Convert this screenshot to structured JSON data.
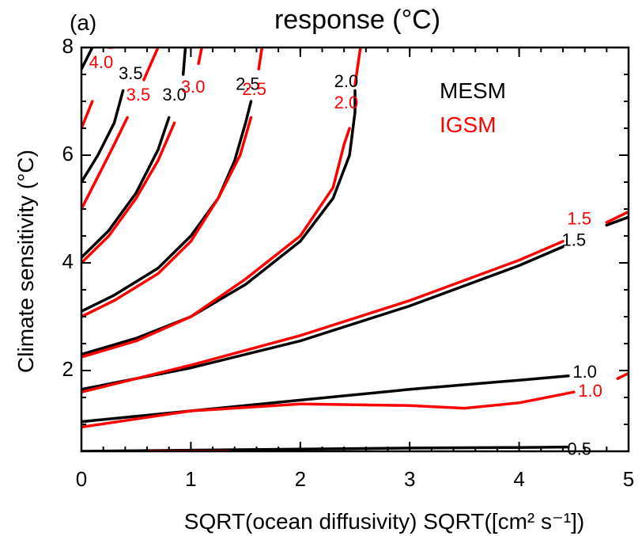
{
  "chart_data": {
    "type": "line",
    "panel_label": "(a)",
    "title": "response (°C)",
    "xlabel": "SQRT(ocean diffusivity) SQRT([cm² s⁻¹])",
    "ylabel": "Climate sensitivity (°C)",
    "xlim": [
      0,
      5
    ],
    "ylim": [
      0.5,
      8
    ],
    "x_ticks": [
      0,
      1,
      2,
      3,
      4,
      5
    ],
    "y_ticks": [
      2,
      4,
      6,
      8
    ],
    "grid": false,
    "legend_position": "top-right",
    "series": [
      {
        "name": "MESM",
        "color": "#000000",
        "contours": [
          {
            "level": "0.5",
            "label_at": [
              4.55,
              0.52
            ],
            "points": [
              [
                0,
                0.5
              ],
              [
                1,
                0.52
              ],
              [
                2,
                0.54
              ],
              [
                3,
                0.56
              ],
              [
                4,
                0.57
              ],
              [
                4.45,
                0.58
              ]
            ]
          },
          {
            "level": "1.0",
            "label_at": [
              4.6,
              1.95
            ],
            "points": [
              [
                0,
                1.05
              ],
              [
                1,
                1.25
              ],
              [
                2,
                1.45
              ],
              [
                3,
                1.65
              ],
              [
                4,
                1.82
              ],
              [
                4.45,
                1.9
              ]
            ]
          },
          {
            "level": "1.5",
            "label_at": [
              4.5,
              4.4
            ],
            "points": [
              [
                0,
                1.65
              ],
              [
                1,
                2.05
              ],
              [
                2,
                2.55
              ],
              [
                3,
                3.2
              ],
              [
                4,
                3.95
              ],
              [
                4.4,
                4.3
              ]
            ]
          },
          {
            "level": "1.5",
            "label_at": null,
            "points": [
              [
                4.8,
                4.7
              ],
              [
                5,
                4.85
              ]
            ]
          },
          {
            "level": "2.0",
            "label_at": [
              2.42,
              7.35
            ],
            "points": [
              [
                0,
                2.3
              ],
              [
                0.5,
                2.6
              ],
              [
                1,
                3.0
              ],
              [
                1.5,
                3.6
              ],
              [
                2,
                4.4
              ],
              [
                2.3,
                5.2
              ],
              [
                2.45,
                6.0
              ],
              [
                2.5,
                6.8
              ],
              [
                2.5,
                7.2
              ]
            ]
          },
          {
            "level": "2.5",
            "label_at": [
              1.52,
              7.3
            ],
            "points": [
              [
                0,
                3.1
              ],
              [
                0.3,
                3.4
              ],
              [
                0.7,
                3.9
              ],
              [
                1.0,
                4.5
              ],
              [
                1.25,
                5.2
              ],
              [
                1.4,
                5.9
              ],
              [
                1.5,
                6.6
              ],
              [
                1.55,
                7.0
              ]
            ]
          },
          {
            "level": "3.0",
            "label_at": [
              0.85,
              7.1
            ],
            "points": [
              [
                0,
                4.1
              ],
              [
                0.25,
                4.6
              ],
              [
                0.5,
                5.3
              ],
              [
                0.7,
                6.1
              ],
              [
                0.8,
                6.7
              ]
            ]
          },
          {
            "level": "3.0",
            "label_at": null,
            "points": [
              [
                0.93,
                7.5
              ],
              [
                0.95,
                8.0
              ]
            ]
          },
          {
            "level": "3.5",
            "label_at": [
              0.45,
              7.5
            ],
            "points": [
              [
                0,
                5.5
              ],
              [
                0.15,
                6.0
              ],
              [
                0.3,
                6.6
              ],
              [
                0.38,
                7.2
              ]
            ]
          },
          {
            "level": "4.0",
            "label_at": null,
            "points": [
              [
                0,
                7.6
              ],
              [
                0.1,
                8.0
              ]
            ]
          }
        ]
      },
      {
        "name": "IGSM",
        "color": "#ff0000",
        "contours": [
          {
            "level": "0.5",
            "label_at": null,
            "points": [
              [
                0.6,
                0.5
              ],
              [
                1.35,
                0.5
              ]
            ]
          },
          {
            "level": "1.0",
            "label_at": [
              4.65,
              1.6
            ],
            "points": [
              [
                0,
                0.95
              ],
              [
                0.5,
                1.1
              ],
              [
                1,
                1.25
              ],
              [
                2,
                1.38
              ],
              [
                3,
                1.35
              ],
              [
                3.5,
                1.3
              ],
              [
                4,
                1.4
              ],
              [
                4.5,
                1.6
              ]
            ]
          },
          {
            "level": "1.0",
            "label_at": null,
            "points": [
              [
                4.9,
                1.85
              ],
              [
                5,
                1.95
              ]
            ]
          },
          {
            "level": "1.5",
            "label_at": [
              4.55,
              4.8
            ],
            "points": [
              [
                0,
                1.6
              ],
              [
                1,
                2.1
              ],
              [
                2,
                2.65
              ],
              [
                3,
                3.3
              ],
              [
                4,
                4.05
              ],
              [
                4.4,
                4.4
              ]
            ]
          },
          {
            "level": "1.5",
            "label_at": null,
            "points": [
              [
                4.8,
                4.75
              ],
              [
                5,
                4.95
              ]
            ]
          },
          {
            "level": "2.0",
            "label_at": [
              2.42,
              6.95
            ],
            "points": [
              [
                0,
                2.25
              ],
              [
                0.5,
                2.55
              ],
              [
                1,
                3.0
              ],
              [
                1.5,
                3.7
              ],
              [
                2,
                4.5
              ],
              [
                2.3,
                5.4
              ],
              [
                2.4,
                6.2
              ],
              [
                2.45,
                6.5
              ]
            ]
          },
          {
            "level": "2.0",
            "label_at": null,
            "points": [
              [
                2.5,
                7.3
              ],
              [
                2.55,
                8.0
              ]
            ]
          },
          {
            "level": "2.5",
            "label_at": [
              1.58,
              7.2
            ],
            "points": [
              [
                0,
                3.0
              ],
              [
                0.3,
                3.3
              ],
              [
                0.7,
                3.8
              ],
              [
                1.0,
                4.4
              ],
              [
                1.25,
                5.2
              ],
              [
                1.45,
                6.0
              ],
              [
                1.55,
                6.7
              ]
            ]
          },
          {
            "level": "2.5",
            "label_at": null,
            "points": [
              [
                1.62,
                7.6
              ],
              [
                1.65,
                8.0
              ]
            ]
          },
          {
            "level": "3.0",
            "label_at": [
              1.02,
              7.25
            ],
            "points": [
              [
                0,
                4.0
              ],
              [
                0.25,
                4.5
              ],
              [
                0.5,
                5.2
              ],
              [
                0.7,
                5.9
              ],
              [
                0.85,
                6.6
              ]
            ]
          },
          {
            "level": "3.0",
            "label_at": null,
            "points": [
              [
                1.07,
                7.7
              ],
              [
                1.1,
                8.0
              ]
            ]
          },
          {
            "level": "3.5",
            "label_at": [
              0.52,
              7.1
            ],
            "points": [
              [
                0,
                5.0
              ],
              [
                0.15,
                5.6
              ],
              [
                0.3,
                6.2
              ],
              [
                0.42,
                6.7
              ]
            ]
          },
          {
            "level": "3.5",
            "label_at": null,
            "points": [
              [
                0.57,
                7.4
              ],
              [
                0.7,
                8.0
              ]
            ]
          },
          {
            "level": "4.0",
            "label_at": [
              0.18,
              7.7
            ],
            "points": [
              [
                0,
                6.5
              ],
              [
                0.1,
                7.0
              ]
            ]
          },
          {
            "level": "4.0",
            "label_at": null,
            "points": [
              [
                0.25,
                8.0
              ],
              [
                0.28,
                8.0
              ]
            ]
          }
        ]
      }
    ]
  }
}
